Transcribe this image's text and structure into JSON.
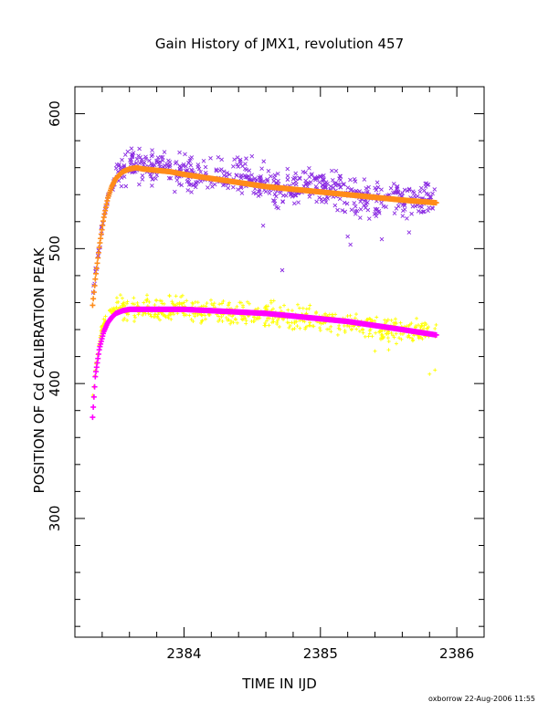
{
  "chart_data": {
    "type": "scatter",
    "title": "Gain History of JMX1, revolution 457",
    "xlabel": "TIME IN IJD",
    "ylabel": "POSITION OF Cd CALIBRATION PEAK",
    "footer": "oxborrow 22-Aug-2006 11:55",
    "xlim": [
      2383.2,
      2386.2
    ],
    "ylim": [
      212,
      620
    ],
    "xticks": [
      2384,
      2385,
      2386
    ],
    "xtick_labels": [
      "2384",
      "2385",
      "2386"
    ],
    "yticks": [
      300,
      400,
      500,
      600
    ],
    "ytick_labels": [
      "300",
      "400",
      "500",
      "600"
    ],
    "grid": false,
    "legend": "none",
    "x_range_data": [
      2383.33,
      2385.85
    ],
    "series": [
      {
        "marker": "x",
        "color": "#8a2be2",
        "x": [
          2383.33,
          2383.36,
          2383.4,
          2383.44,
          2383.5,
          2383.56,
          2383.62,
          2383.7,
          2383.8,
          2383.9,
          2384.0,
          2384.1,
          2384.2,
          2384.3,
          2384.4,
          2384.5,
          2384.6,
          2384.7,
          2384.8,
          2384.9,
          2385.0,
          2385.1,
          2385.2,
          2385.3,
          2385.4,
          2385.5,
          2385.6,
          2385.7,
          2385.8,
          2385.85
        ],
        "y": [
          466,
          488,
          517,
          537,
          553,
          560,
          562,
          561,
          560,
          558,
          556,
          554,
          555,
          553,
          556,
          552,
          549,
          546,
          543,
          546,
          548,
          544,
          540,
          538,
          533,
          541,
          538,
          534,
          537,
          534
        ],
        "spread": 11,
        "outliers": [
          [
            2384.72,
            484
          ],
          [
            2385.2,
            509
          ],
          [
            2385.22,
            503
          ],
          [
            2385.45,
            507
          ],
          [
            2384.58,
            517
          ],
          [
            2385.65,
            512
          ]
        ]
      },
      {
        "marker": "+",
        "color": "#ffff00",
        "x": [
          2383.33,
          2383.36,
          2383.4,
          2383.45,
          2383.5,
          2383.6,
          2383.7,
          2383.8,
          2383.9,
          2384.0,
          2384.1,
          2384.2,
          2384.3,
          2384.4,
          2384.5,
          2384.6,
          2384.7,
          2384.8,
          2384.9,
          2385.0,
          2385.1,
          2385.2,
          2385.3,
          2385.4,
          2385.5,
          2385.6,
          2385.7,
          2385.8,
          2385.85
        ],
        "y": [
          387,
          420,
          443,
          452,
          455,
          456,
          456,
          455,
          455,
          455,
          454,
          453,
          452,
          451,
          452,
          450,
          449,
          448,
          448,
          447,
          446,
          444,
          443,
          442,
          440,
          439,
          439,
          438,
          440
        ],
        "spread": 8,
        "outliers": [
          [
            2385.4,
            424
          ],
          [
            2385.8,
            407
          ],
          [
            2385.84,
            410
          ],
          [
            2385.5,
            425
          ]
        ]
      },
      {
        "marker": "+",
        "color": "#ff8c1a",
        "fit": true,
        "x": [
          2383.33,
          2383.35,
          2383.38,
          2383.41,
          2383.44,
          2383.47,
          2383.5,
          2383.55,
          2383.6,
          2383.65,
          2383.7,
          2383.8,
          2383.9,
          2384.0,
          2384.2,
          2384.4,
          2384.6,
          2384.8,
          2385.0,
          2385.2,
          2385.4,
          2385.6,
          2385.85
        ],
        "y": [
          458,
          478,
          502,
          522,
          537,
          546,
          552,
          557,
          559,
          560,
          559,
          558,
          557,
          555,
          552,
          549,
          546,
          544,
          542,
          540,
          538,
          536,
          534
        ]
      },
      {
        "marker": "+",
        "color": "#ff00ff",
        "fit": true,
        "x": [
          2383.33,
          2383.35,
          2383.38,
          2383.41,
          2383.44,
          2383.47,
          2383.5,
          2383.55,
          2383.6,
          2383.7,
          2383.8,
          2384.0,
          2384.2,
          2384.4,
          2384.6,
          2384.8,
          2385.0,
          2385.2,
          2385.4,
          2385.6,
          2385.85
        ],
        "y": [
          375,
          406,
          426,
          438,
          445,
          449,
          452,
          454,
          455,
          455,
          455,
          455,
          454,
          453,
          452,
          450,
          448,
          446,
          443,
          440,
          436
        ]
      }
    ]
  }
}
